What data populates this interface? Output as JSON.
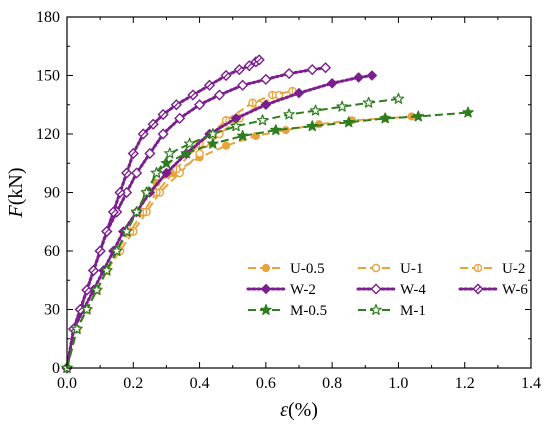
{
  "chart_data": {
    "type": "line",
    "title": "",
    "xlabel": {
      "symbol": "ε",
      "unit": "(%)"
    },
    "ylabel": {
      "symbol": "F",
      "unit": "(kN)"
    },
    "xlim": [
      0,
      1.4
    ],
    "ylim": [
      0,
      180
    ],
    "x_ticks": [
      "0.0",
      "0.2",
      "0.4",
      "0.6",
      "0.8",
      "1.0",
      "1.2",
      "1.4"
    ],
    "y_ticks": [
      "0",
      "30",
      "60",
      "90",
      "120",
      "150",
      "180"
    ],
    "grid": false,
    "legend_position": "lower-right",
    "colors": {
      "U": "#E8A33D",
      "W": "#7B1E8E",
      "M": "#2E7D1E"
    },
    "series": [
      {
        "name": "U-0.5",
        "color": "#E8A33D",
        "marker": "circle-filled",
        "line": "dashed",
        "x": [
          0,
          0.03,
          0.06,
          0.09,
          0.12,
          0.15,
          0.18,
          0.21,
          0.24,
          0.27,
          0.32,
          0.4,
          0.48,
          0.57,
          0.66,
          0.76,
          0.86,
          0.96,
          1.04
        ],
        "y": [
          0,
          20,
          30,
          40,
          50,
          60,
          70,
          80,
          90,
          95,
          100,
          108,
          114,
          119,
          122,
          125,
          127,
          128,
          129
        ]
      },
      {
        "name": "U-1",
        "color": "#E8A33D",
        "marker": "circle-open",
        "line": "dashed",
        "x": [
          0,
          0.03,
          0.06,
          0.09,
          0.12,
          0.16,
          0.2,
          0.24,
          0.28,
          0.34,
          0.4,
          0.46,
          0.52,
          0.58,
          0.64
        ],
        "y": [
          0,
          20,
          30,
          40,
          50,
          60,
          70,
          80,
          90,
          100,
          110,
          120,
          128,
          135,
          140
        ]
      },
      {
        "name": "U-2",
        "color": "#E8A33D",
        "marker": "circle-half",
        "line": "dashed",
        "x": [
          0,
          0.03,
          0.06,
          0.09,
          0.12,
          0.15,
          0.19,
          0.23,
          0.27,
          0.33,
          0.4,
          0.48,
          0.56,
          0.62,
          0.68
        ],
        "y": [
          0,
          20,
          30,
          40,
          50,
          60,
          70,
          80,
          90,
          102,
          115,
          127,
          136,
          140,
          142
        ]
      },
      {
        "name": "W-2",
        "color": "#7B1E8E",
        "marker": "diamond-filled",
        "line": "dotted",
        "x": [
          0,
          0.02,
          0.05,
          0.08,
          0.11,
          0.14,
          0.17,
          0.21,
          0.25,
          0.3,
          0.36,
          0.43,
          0.51,
          0.6,
          0.7,
          0.8,
          0.88,
          0.92
        ],
        "y": [
          0,
          20,
          30,
          40,
          50,
          60,
          70,
          80,
          90,
          100,
          110,
          120,
          128,
          135,
          141,
          146,
          149,
          150
        ]
      },
      {
        "name": "W-4",
        "color": "#7B1E8E",
        "marker": "diamond-open",
        "line": "dotted",
        "x": [
          0,
          0.02,
          0.04,
          0.06,
          0.08,
          0.1,
          0.12,
          0.15,
          0.18,
          0.21,
          0.25,
          0.29,
          0.34,
          0.4,
          0.46,
          0.53,
          0.6,
          0.67,
          0.74,
          0.78
        ],
        "y": [
          0,
          20,
          30,
          40,
          50,
          60,
          70,
          80,
          90,
          100,
          110,
          120,
          128,
          135,
          140,
          145,
          148,
          151,
          153,
          154
        ]
      },
      {
        "name": "W-6",
        "color": "#7B1E8E",
        "marker": "diamond-half",
        "line": "dotted",
        "x": [
          0,
          0.02,
          0.04,
          0.06,
          0.08,
          0.1,
          0.12,
          0.14,
          0.16,
          0.18,
          0.2,
          0.23,
          0.26,
          0.29,
          0.33,
          0.38,
          0.43,
          0.48,
          0.52,
          0.55,
          0.57,
          0.58
        ],
        "y": [
          0,
          20,
          30,
          40,
          50,
          60,
          70,
          80,
          90,
          100,
          110,
          120,
          125,
          130,
          135,
          140,
          145,
          150,
          153,
          155,
          157,
          158
        ]
      },
      {
        "name": "M-0.5",
        "color": "#2E7D1E",
        "marker": "star-filled",
        "line": "dashed",
        "x": [
          0,
          0.03,
          0.06,
          0.09,
          0.12,
          0.15,
          0.18,
          0.21,
          0.24,
          0.27,
          0.3,
          0.36,
          0.44,
          0.53,
          0.63,
          0.74,
          0.85,
          0.96,
          1.06,
          1.21
        ],
        "y": [
          0,
          20,
          30,
          40,
          50,
          60,
          70,
          80,
          90,
          100,
          105,
          110,
          115,
          119,
          122,
          124,
          126,
          128,
          129,
          131
        ]
      },
      {
        "name": "M-1",
        "color": "#2E7D1E",
        "marker": "star-open",
        "line": "dashed",
        "x": [
          0,
          0.03,
          0.06,
          0.09,
          0.12,
          0.15,
          0.18,
          0.21,
          0.24,
          0.27,
          0.31,
          0.37,
          0.44,
          0.51,
          0.59,
          0.67,
          0.75,
          0.83,
          0.91,
          1.0
        ],
        "y": [
          0,
          20,
          30,
          40,
          50,
          60,
          70,
          80,
          90,
          100,
          110,
          115,
          120,
          124,
          127,
          130,
          132,
          134,
          136,
          138
        ]
      }
    ],
    "legend_order": [
      [
        "U-0.5",
        "U-1",
        "U-2"
      ],
      [
        "W-2",
        "W-4",
        "W-6"
      ],
      [
        "M-0.5",
        "M-1"
      ]
    ]
  }
}
